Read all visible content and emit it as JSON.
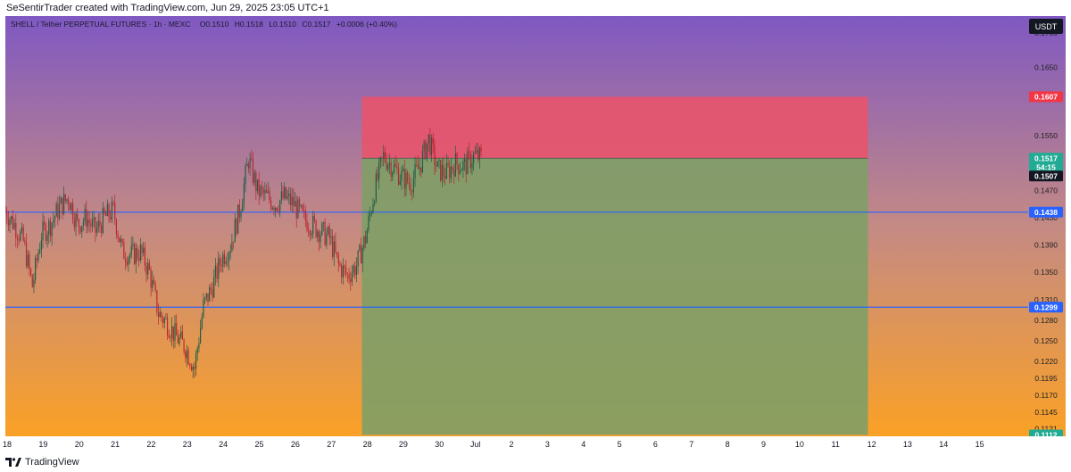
{
  "header": {
    "caption": "SeSentirTrader created with TradingView.com, Jun 29, 2025 23:05 UTC+1"
  },
  "footer": {
    "brand_label": "TradingView",
    "brand_icon": "tradingview-logo-icon"
  },
  "colors": {
    "bg_top": "#7f58c2",
    "bg_mid": "#c48a84",
    "bg_bottom": "#fba126",
    "stop_zone": "#e8546b",
    "target_zone": "#7f9e66",
    "candle_up": "#1f5c45",
    "candle_down": "#b8262f",
    "hline": "#2962ff",
    "label_stop": "#f23645",
    "label_price": "#22ab94",
    "label_dark": "#131722",
    "label_blue": "#2962ff",
    "label_target": "#22ab94"
  },
  "chart_data": {
    "type": "candlestick",
    "title": "SHELL / Tether PERPETUAL FUTURES · 1h · MEXC",
    "ohlc_readout": {
      "open": "O0.1510",
      "high": "H0.1518",
      "low": "L0.1510",
      "close": "C0.1517",
      "change": "+0.0006 (+0.40%)"
    },
    "currency": "USDT",
    "ylim": [
      0.111,
      0.1725
    ],
    "y_ticks": [
      0.17,
      0.165,
      0.155,
      0.147,
      0.143,
      0.139,
      0.135,
      0.131,
      0.128,
      0.125,
      0.122,
      0.1195,
      0.117,
      0.1145,
      0.1121
    ],
    "x_ticks": [
      "18",
      "19",
      "20",
      "21",
      "22",
      "23",
      "24",
      "25",
      "26",
      "27",
      "28",
      "29",
      "30",
      "Jul",
      "2",
      "3",
      "4",
      "5",
      "6",
      "7",
      "8",
      "9",
      "10",
      "11",
      "12",
      "13",
      "14",
      "15"
    ],
    "x_range_days": [
      17.95,
      46.0
    ],
    "horizontal_lines": [
      {
        "price": 0.1438,
        "label": "0.1438"
      },
      {
        "price": 0.1299,
        "label": "0.1299"
      }
    ],
    "position": {
      "type": "short",
      "entry": 0.1517,
      "stop": 0.1607,
      "target": 0.1112,
      "stop_label": "0.1607",
      "target_label": "0.1112",
      "start_day": 27.85,
      "end_day": 41.9
    },
    "price_labels": {
      "last": "0.1517",
      "countdown": "54:15",
      "prev": "0.1507"
    },
    "trace": [
      [
        17.95,
        0.144
      ],
      [
        18.2,
        0.142
      ],
      [
        18.45,
        0.1395
      ],
      [
        18.7,
        0.133
      ],
      [
        18.95,
        0.1405
      ],
      [
        19.2,
        0.142
      ],
      [
        19.45,
        0.1445
      ],
      [
        19.7,
        0.146
      ],
      [
        19.95,
        0.142
      ],
      [
        20.2,
        0.143
      ],
      [
        20.45,
        0.141
      ],
      [
        20.7,
        0.143
      ],
      [
        20.95,
        0.144
      ],
      [
        21.2,
        0.138
      ],
      [
        21.45,
        0.1375
      ],
      [
        21.7,
        0.138
      ],
      [
        21.95,
        0.135
      ],
      [
        22.2,
        0.129
      ],
      [
        22.45,
        0.1275
      ],
      [
        22.7,
        0.1255
      ],
      [
        22.95,
        0.124
      ],
      [
        23.2,
        0.121
      ],
      [
        23.45,
        0.13
      ],
      [
        23.7,
        0.133
      ],
      [
        23.95,
        0.137
      ],
      [
        24.2,
        0.139
      ],
      [
        24.45,
        0.144
      ],
      [
        24.7,
        0.1515
      ],
      [
        24.95,
        0.147
      ],
      [
        25.2,
        0.146
      ],
      [
        25.45,
        0.145
      ],
      [
        25.7,
        0.146
      ],
      [
        25.95,
        0.145
      ],
      [
        26.2,
        0.143
      ],
      [
        26.45,
        0.142
      ],
      [
        26.7,
        0.141
      ],
      [
        26.95,
        0.14
      ],
      [
        27.2,
        0.136
      ],
      [
        27.45,
        0.1345
      ],
      [
        27.7,
        0.136
      ],
      [
        27.95,
        0.14
      ],
      [
        28.2,
        0.147
      ],
      [
        28.45,
        0.152
      ],
      [
        28.7,
        0.1505
      ],
      [
        28.95,
        0.149
      ],
      [
        29.2,
        0.148
      ],
      [
        29.45,
        0.1505
      ],
      [
        29.7,
        0.1545
      ],
      [
        29.95,
        0.15
      ],
      [
        30.2,
        0.1495
      ],
      [
        30.45,
        0.151
      ],
      [
        30.7,
        0.1505
      ],
      [
        30.95,
        0.152
      ],
      [
        31.2,
        0.1517
      ]
    ]
  }
}
